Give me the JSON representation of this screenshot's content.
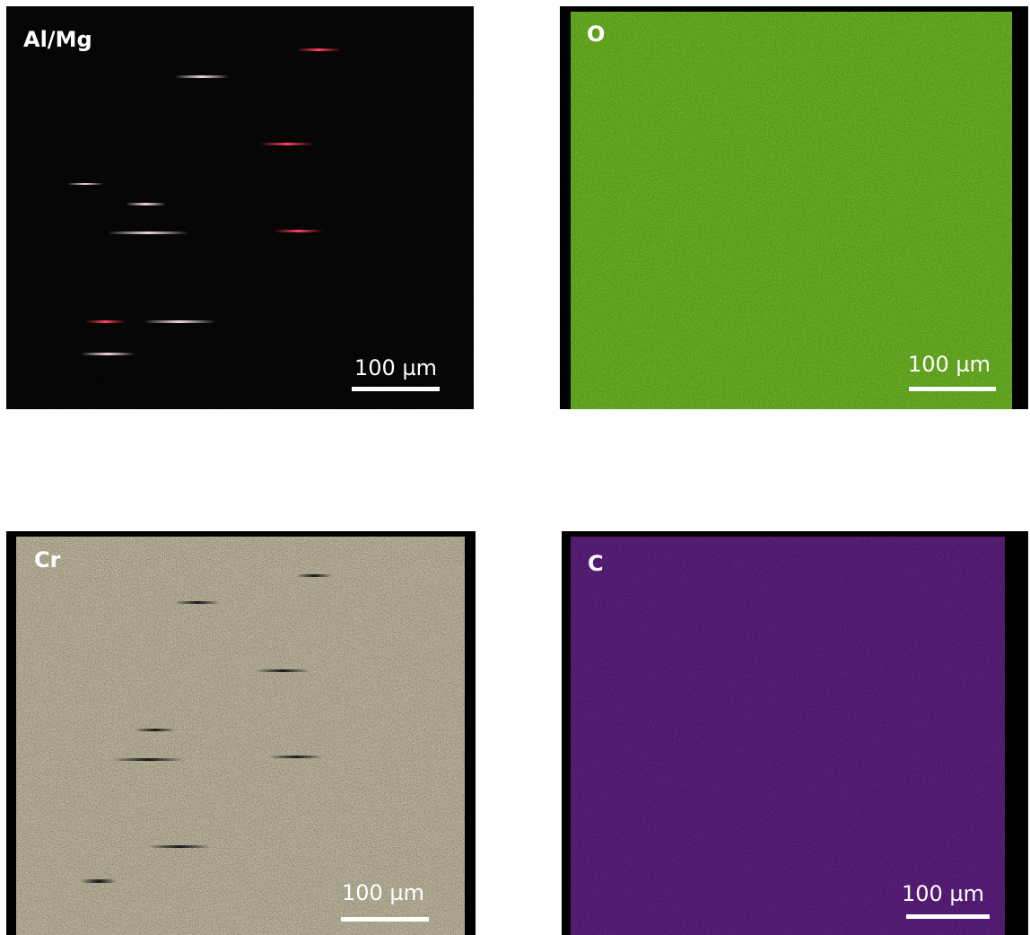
{
  "panels": [
    {
      "label": "Al/Mg",
      "scale_bar": "100 µm"
    },
    {
      "label": "O",
      "scale_bar": "100 µm"
    },
    {
      "label": "Cr",
      "scale_bar": "100 µm"
    },
    {
      "label": "C",
      "scale_bar": "100 µm"
    }
  ]
}
